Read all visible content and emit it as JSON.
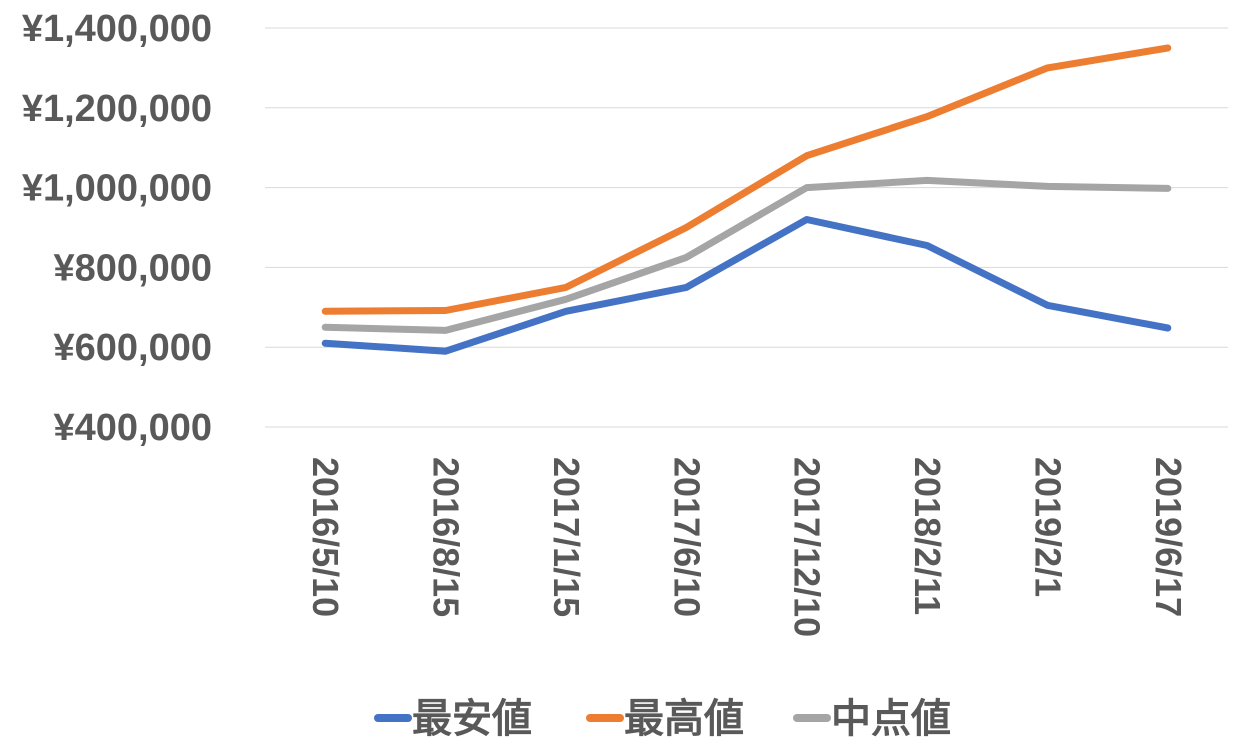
{
  "chart_data": {
    "type": "line",
    "categories": [
      "2016/5/10",
      "2016/8/15",
      "2017/1/15",
      "2017/6/10",
      "2017/12/10",
      "2018/2/11",
      "2019/2/1",
      "2019/6/17"
    ],
    "series": [
      {
        "name": "最安値",
        "color": "#4472c4",
        "values": [
          610000,
          590000,
          690000,
          750000,
          920000,
          855000,
          705000,
          648000
        ]
      },
      {
        "name": "最高値",
        "color": "#ed7d31",
        "values": [
          690000,
          692000,
          750000,
          900000,
          1080000,
          1178000,
          1300000,
          1350000
        ]
      },
      {
        "name": "中点値",
        "color": "#a5a5a5",
        "values": [
          650000,
          642000,
          720000,
          825000,
          1000000,
          1018000,
          1003000,
          998000
        ]
      }
    ],
    "ylim": [
      400000,
      1400000
    ],
    "yticks": [
      "¥400,000",
      "¥600,000",
      "¥800,000",
      "¥1,000,000",
      "¥1,200,000",
      "¥1,400,000"
    ],
    "ytick_values": [
      400000,
      600000,
      800000,
      1000000,
      1200000,
      1400000
    ],
    "grid": true,
    "legend_position": "bottom"
  }
}
